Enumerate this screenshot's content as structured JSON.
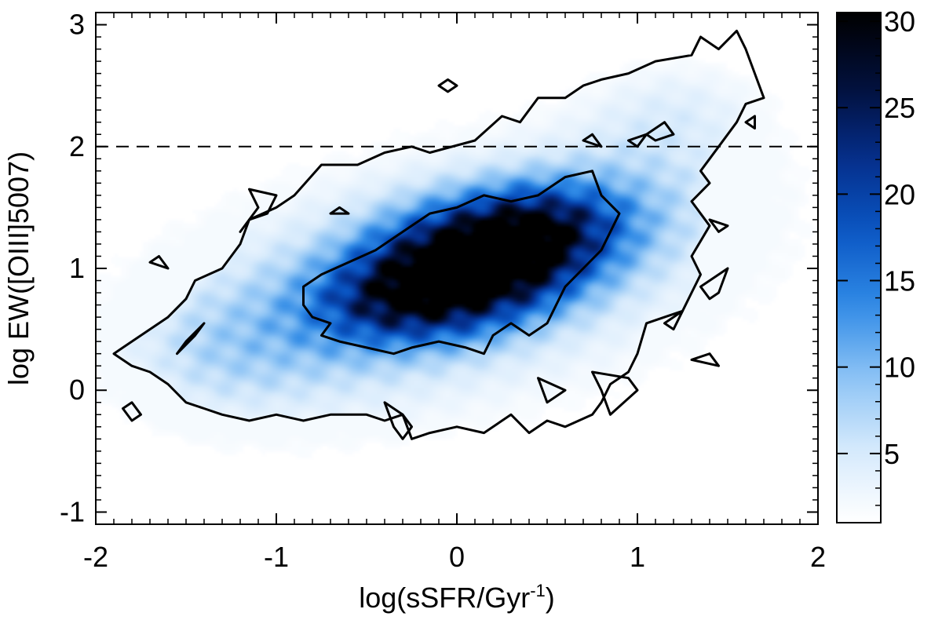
{
  "chart_data": {
    "type": "heatmap",
    "title": "",
    "xlabel": {
      "base": "log(sSFR/Gyr",
      "sup": "-1",
      "tail": ")"
    },
    "ylabel": "log EW([OIII]5007)",
    "xlim": [
      -2,
      2
    ],
    "ylim": [
      -1.1,
      3.1
    ],
    "x_ticks": [
      -2,
      -1,
      0,
      1,
      2
    ],
    "x_tick_labels": [
      "-2",
      "-1",
      "0",
      "1",
      "2"
    ],
    "y_ticks": [
      -1,
      0,
      1,
      2,
      3
    ],
    "y_tick_labels": [
      "-1",
      "0",
      "1",
      "2",
      "3"
    ],
    "colorbar": {
      "min": 1,
      "max": 30.5,
      "ticks": [
        5,
        10,
        15,
        20,
        25,
        30
      ],
      "tick_labels": [
        "5",
        "10",
        "15",
        "20",
        "25",
        "30"
      ],
      "colormap": [
        "#ffffff",
        "#d6eafc",
        "#8cc3f5",
        "#2f8ae6",
        "#0a56c4",
        "#052e8a",
        "#020f3a",
        "#000000"
      ]
    },
    "reference_line": {
      "y": 2.0,
      "style": "dashed"
    },
    "density_blobs": [
      {
        "x": 0.1,
        "y": 1.05,
        "sx": 0.42,
        "sy": 0.32,
        "rot": 22,
        "amp": 28
      },
      {
        "x": 0.45,
        "y": 1.3,
        "sx": 0.35,
        "sy": 0.25,
        "rot": 25,
        "amp": 12
      },
      {
        "x": -0.3,
        "y": 0.75,
        "sx": 0.35,
        "sy": 0.25,
        "rot": 15,
        "amp": 12
      },
      {
        "x": 0.0,
        "y": 0.9,
        "sx": 1.1,
        "sy": 0.7,
        "rot": 20,
        "amp": 6
      },
      {
        "x": -0.9,
        "y": 0.5,
        "sx": 0.6,
        "sy": 0.45,
        "rot": 15,
        "amp": 4
      },
      {
        "x": 0.9,
        "y": 1.5,
        "sx": 0.5,
        "sy": 0.4,
        "rot": 30,
        "amp": 4
      },
      {
        "x": 1.2,
        "y": 2.3,
        "sx": 0.35,
        "sy": 0.3,
        "rot": 20,
        "amp": 3
      },
      {
        "x": -1.3,
        "y": 0.3,
        "sx": 0.35,
        "sy": 0.35,
        "rot": 0,
        "amp": 2.5
      }
    ],
    "contours": [
      {
        "name": "outer",
        "points": [
          [
            -1.85,
            0.35
          ],
          [
            -1.75,
            0.45
          ],
          [
            -1.6,
            0.6
          ],
          [
            -1.5,
            0.75
          ],
          [
            -1.45,
            0.9
          ],
          [
            -1.3,
            1.0
          ],
          [
            -1.2,
            1.2
          ],
          [
            -1.15,
            1.4
          ],
          [
            -1.0,
            1.5
          ],
          [
            -0.9,
            1.6
          ],
          [
            -0.75,
            1.85
          ],
          [
            -0.55,
            1.85
          ],
          [
            -0.4,
            1.95
          ],
          [
            -0.25,
            2.0
          ],
          [
            -0.15,
            1.95
          ],
          [
            0.1,
            2.05
          ],
          [
            0.25,
            2.25
          ],
          [
            0.35,
            2.2
          ],
          [
            0.45,
            2.4
          ],
          [
            0.6,
            2.4
          ],
          [
            0.7,
            2.5
          ],
          [
            0.8,
            2.55
          ],
          [
            0.95,
            2.6
          ],
          [
            1.1,
            2.7
          ],
          [
            1.3,
            2.75
          ],
          [
            1.35,
            2.9
          ],
          [
            1.45,
            2.8
          ],
          [
            1.55,
            2.95
          ],
          [
            1.6,
            2.8
          ],
          [
            1.65,
            2.6
          ],
          [
            1.7,
            2.4
          ],
          [
            1.6,
            2.35
          ],
          [
            1.55,
            2.2
          ],
          [
            1.45,
            2.0
          ],
          [
            1.35,
            1.8
          ],
          [
            1.4,
            1.7
          ],
          [
            1.3,
            1.55
          ],
          [
            1.4,
            1.35
          ],
          [
            1.3,
            1.1
          ],
          [
            1.35,
            0.95
          ],
          [
            1.3,
            0.8
          ],
          [
            1.25,
            0.65
          ],
          [
            1.15,
            0.6
          ],
          [
            1.05,
            0.55
          ],
          [
            1.0,
            0.3
          ],
          [
            0.95,
            0.15
          ],
          [
            0.85,
            0.05
          ],
          [
            0.8,
            -0.1
          ],
          [
            0.75,
            -0.2
          ],
          [
            0.6,
            -0.3
          ],
          [
            0.5,
            -0.25
          ],
          [
            0.4,
            -0.35
          ],
          [
            0.3,
            -0.2
          ],
          [
            0.15,
            -0.35
          ],
          [
            0.0,
            -0.3
          ],
          [
            -0.15,
            -0.35
          ],
          [
            -0.25,
            -0.4
          ],
          [
            -0.3,
            -0.2
          ],
          [
            -0.4,
            -0.25
          ],
          [
            -0.5,
            -0.2
          ],
          [
            -0.7,
            -0.2
          ],
          [
            -0.85,
            -0.25
          ],
          [
            -1.0,
            -0.2
          ],
          [
            -1.15,
            -0.25
          ],
          [
            -1.3,
            -0.2
          ],
          [
            -1.4,
            -0.15
          ],
          [
            -1.5,
            -0.1
          ],
          [
            -1.6,
            0.05
          ],
          [
            -1.7,
            0.15
          ],
          [
            -1.8,
            0.2
          ],
          [
            -1.9,
            0.3
          ]
        ]
      },
      {
        "name": "inner",
        "points": [
          [
            -0.85,
            0.85
          ],
          [
            -0.75,
            0.95
          ],
          [
            -0.6,
            1.05
          ],
          [
            -0.45,
            1.15
          ],
          [
            -0.3,
            1.3
          ],
          [
            -0.15,
            1.45
          ],
          [
            0.0,
            1.5
          ],
          [
            0.15,
            1.6
          ],
          [
            0.3,
            1.55
          ],
          [
            0.45,
            1.6
          ],
          [
            0.6,
            1.75
          ],
          [
            0.75,
            1.8
          ],
          [
            0.8,
            1.6
          ],
          [
            0.9,
            1.45
          ],
          [
            0.85,
            1.3
          ],
          [
            0.8,
            1.15
          ],
          [
            0.7,
            1.0
          ],
          [
            0.6,
            0.85
          ],
          [
            0.55,
            0.7
          ],
          [
            0.5,
            0.55
          ],
          [
            0.4,
            0.45
          ],
          [
            0.3,
            0.55
          ],
          [
            0.2,
            0.45
          ],
          [
            0.15,
            0.3
          ],
          [
            0.05,
            0.35
          ],
          [
            -0.1,
            0.4
          ],
          [
            -0.25,
            0.35
          ],
          [
            -0.35,
            0.3
          ],
          [
            -0.5,
            0.35
          ],
          [
            -0.65,
            0.4
          ],
          [
            -0.75,
            0.45
          ],
          [
            -0.7,
            0.55
          ],
          [
            -0.8,
            0.6
          ],
          [
            -0.85,
            0.7
          ]
        ]
      },
      {
        "name": "island-1",
        "points": [
          [
            -1.15,
            1.65
          ],
          [
            -1.0,
            1.6
          ],
          [
            -1.05,
            1.45
          ],
          [
            -1.15,
            1.4
          ],
          [
            -1.2,
            1.3
          ],
          [
            -1.1,
            1.5
          ]
        ]
      },
      {
        "name": "island-2",
        "points": [
          [
            -1.7,
            1.05
          ],
          [
            -1.65,
            1.1
          ],
          [
            -1.6,
            1.0
          ]
        ]
      },
      {
        "name": "island-3",
        "points": [
          [
            -1.55,
            0.3
          ],
          [
            -1.45,
            0.45
          ],
          [
            -1.4,
            0.55
          ],
          [
            -1.5,
            0.4
          ]
        ]
      },
      {
        "name": "island-4",
        "points": [
          [
            -1.85,
            -0.15
          ],
          [
            -1.8,
            -0.1
          ],
          [
            -1.75,
            -0.2
          ],
          [
            -1.8,
            -0.25
          ]
        ]
      },
      {
        "name": "island-5",
        "points": [
          [
            -0.1,
            2.5
          ],
          [
            -0.05,
            2.45
          ],
          [
            0.0,
            2.5
          ],
          [
            -0.05,
            2.55
          ]
        ]
      },
      {
        "name": "island-6",
        "points": [
          [
            -0.7,
            1.45
          ],
          [
            -0.6,
            1.45
          ],
          [
            -0.65,
            1.5
          ]
        ]
      },
      {
        "name": "island-7",
        "points": [
          [
            0.7,
            2.05
          ],
          [
            0.8,
            2.0
          ],
          [
            0.75,
            2.1
          ]
        ]
      },
      {
        "name": "island-8",
        "points": [
          [
            0.95,
            2.05
          ],
          [
            1.05,
            2.1
          ],
          [
            1.0,
            2.0
          ]
        ]
      },
      {
        "name": "island-9",
        "points": [
          [
            1.05,
            2.1
          ],
          [
            1.15,
            2.2
          ],
          [
            1.2,
            2.1
          ],
          [
            1.1,
            2.05
          ]
        ]
      },
      {
        "name": "island-10",
        "points": [
          [
            1.6,
            2.2
          ],
          [
            1.65,
            2.25
          ],
          [
            1.65,
            2.15
          ]
        ]
      },
      {
        "name": "island-11",
        "points": [
          [
            1.15,
            0.55
          ],
          [
            1.25,
            0.65
          ],
          [
            1.2,
            0.5
          ]
        ]
      },
      {
        "name": "island-12",
        "points": [
          [
            1.3,
            0.25
          ],
          [
            1.4,
            0.3
          ],
          [
            1.45,
            0.2
          ]
        ]
      },
      {
        "name": "island-13",
        "points": [
          [
            -0.4,
            -0.1
          ],
          [
            -0.3,
            -0.2
          ],
          [
            -0.25,
            -0.3
          ],
          [
            -0.3,
            -0.4
          ],
          [
            -0.35,
            -0.3
          ]
        ]
      },
      {
        "name": "island-14",
        "points": [
          [
            0.45,
            0.1
          ],
          [
            0.6,
            0.0
          ],
          [
            0.5,
            -0.1
          ]
        ]
      },
      {
        "name": "island-15",
        "points": [
          [
            0.75,
            0.15
          ],
          [
            0.95,
            0.1
          ],
          [
            1.0,
            0.0
          ],
          [
            0.85,
            -0.2
          ],
          [
            0.8,
            0.0
          ]
        ]
      },
      {
        "name": "island-16",
        "points": [
          [
            1.4,
            1.4
          ],
          [
            1.5,
            1.35
          ],
          [
            1.45,
            1.3
          ]
        ]
      },
      {
        "name": "island-17",
        "points": [
          [
            1.35,
            0.85
          ],
          [
            1.5,
            1.0
          ],
          [
            1.45,
            0.8
          ],
          [
            1.4,
            0.75
          ]
        ]
      }
    ]
  }
}
